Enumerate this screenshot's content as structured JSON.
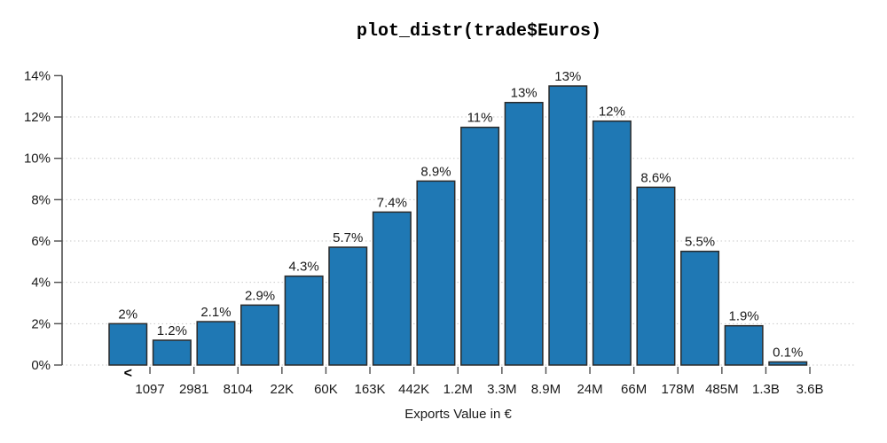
{
  "chart_data": {
    "type": "bar",
    "title": "plot_distr(trade$Euros)",
    "xlabel": "Exports Value in €",
    "ylabel": "",
    "ylim": [
      0,
      14
    ],
    "y_tick_values": [
      0,
      2,
      4,
      6,
      8,
      10,
      12,
      14
    ],
    "y_tick_labels": [
      "0%",
      "2%",
      "4%",
      "6%",
      "8%",
      "10%",
      "12%",
      "14%"
    ],
    "gridline_values": [
      0,
      2,
      4,
      6,
      8,
      10,
      12
    ],
    "grid_style": "dotted",
    "legend_position": "none",
    "first_bin_prefix": "<",
    "categories": [
      "1097",
      "2981",
      "8104",
      "22K",
      "60K",
      "163K",
      "442K",
      "1.2M",
      "3.3M",
      "8.9M",
      "24M",
      "66M",
      "178M",
      "485M",
      "1.3B",
      "3.6B"
    ],
    "values": [
      2.0,
      1.2,
      2.1,
      2.9,
      4.3,
      5.7,
      7.4,
      8.9,
      11.5,
      12.7,
      13.5,
      11.8,
      8.6,
      5.5,
      1.9,
      0.15
    ],
    "bar_labels": [
      "2%",
      "1.2%",
      "2.1%",
      "2.9%",
      "4.3%",
      "5.7%",
      "7.4%",
      "8.9%",
      "11%",
      "13%",
      "13%",
      "12%",
      "8.6%",
      "5.5%",
      "1.9%",
      "0.1%"
    ],
    "colors": {
      "bar_fill": "#1f78b4",
      "bar_stroke": "#2b2b2b",
      "axis": "#4d4d4d",
      "gridline": "#c9c9c9",
      "text": "#1a1a1a"
    }
  }
}
